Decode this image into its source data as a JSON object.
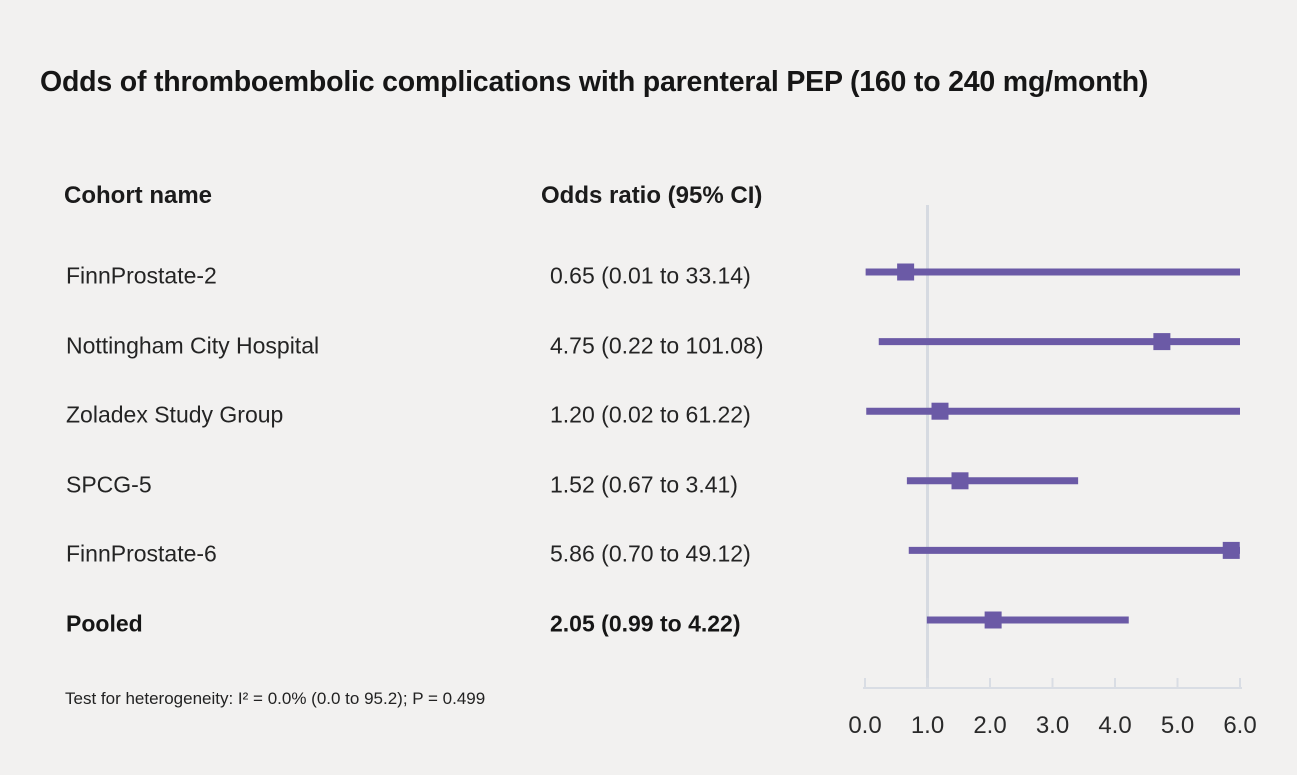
{
  "title": "Odds of thromboembolic complications with parenteral PEP (160 to 240 mg/month)",
  "table": {
    "header_cohort": "Cohort name",
    "header_odds_ratio": "Odds ratio (95% CI)"
  },
  "footnote": "Test for heterogeneity: I² = 0.0% (0.0 to 95.2); P = 0.499",
  "chart_data": {
    "type": "forest",
    "title": "Odds of thromboembolic complications with parenteral PEP (160 to 240 mg/month)",
    "xlabel": "",
    "ylabel": "",
    "axis": {
      "min": 0.0,
      "max": 6.0,
      "tick_values": [
        0.0,
        1.0,
        2.0,
        3.0,
        4.0,
        5.0,
        6.0
      ],
      "tick_labels": [
        "0.0",
        "1.0",
        "2.0",
        "3.0",
        "4.0",
        "5.0",
        "6.0"
      ],
      "reference_line": 1.0,
      "grid": false,
      "note": "CI lines extending beyond axis max are clipped at 6.0"
    },
    "rows": [
      {
        "name": "FinnProstate-2",
        "label": "0.65 (0.01 to 33.14)",
        "or": 0.65,
        "ci_low": 0.01,
        "ci_high": 33.14,
        "bold": false
      },
      {
        "name": "Nottingham City Hospital",
        "label": "4.75 (0.22 to 101.08)",
        "or": 4.75,
        "ci_low": 0.22,
        "ci_high": 101.08,
        "bold": false
      },
      {
        "name": "Zoladex Study Group",
        "label": "1.20 (0.02 to 61.22)",
        "or": 1.2,
        "ci_low": 0.02,
        "ci_high": 61.22,
        "bold": false
      },
      {
        "name": "SPCG-5",
        "label": "1.52 (0.67 to 3.41)",
        "or": 1.52,
        "ci_low": 0.67,
        "ci_high": 3.41,
        "bold": false
      },
      {
        "name": "FinnProstate-6",
        "label": "5.86 (0.70 to 49.12)",
        "or": 5.86,
        "ci_low": 0.7,
        "ci_high": 49.12,
        "bold": false
      },
      {
        "name": "Pooled",
        "label": "2.05 (0.99 to 4.22)",
        "or": 2.05,
        "ci_low": 0.99,
        "ci_high": 4.22,
        "bold": true
      }
    ],
    "colors": {
      "marker": "#6b5aa6",
      "ci_line": "#6b5aa6",
      "axis_line": "#d9dde4",
      "reference_line": "#d6dae1",
      "background": "#f2f1f0"
    }
  }
}
